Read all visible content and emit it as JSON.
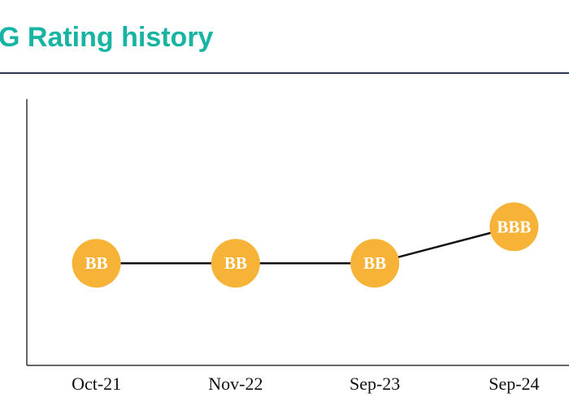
{
  "chart_data": {
    "type": "line",
    "title": "G Rating history",
    "categories": [
      "Oct-21",
      "Nov-22",
      "Sep-23",
      "Sep-24"
    ],
    "values": [
      1,
      1,
      1,
      2
    ],
    "value_labels": [
      "BB",
      "BB",
      "BB",
      "BBB"
    ],
    "color": "#f7b338",
    "line_color": "#111111",
    "ylim": [
      -1.8,
      5.5
    ]
  }
}
